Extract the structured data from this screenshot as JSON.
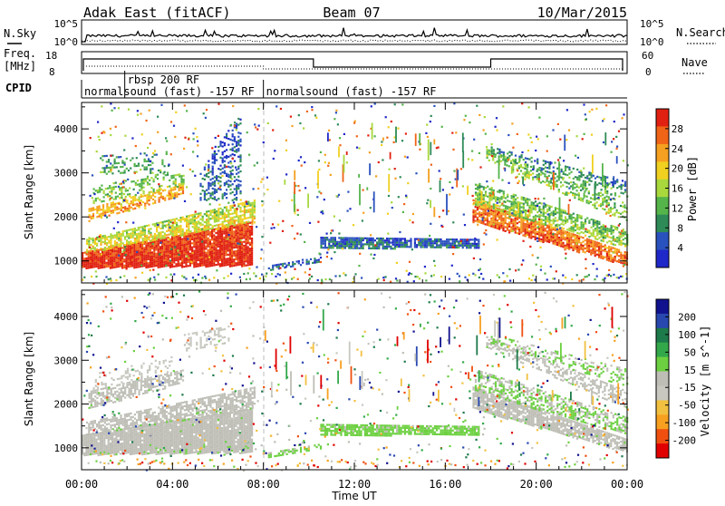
{
  "header": {
    "station": "Adak East (fitACF)",
    "beam": "Beam 07",
    "date": "10/Mar/2015"
  },
  "noise_panel": {
    "left_label": "N.Sky",
    "right_label": "N.Search",
    "left_ticks": [
      "10^5",
      "10^0"
    ],
    "right_ticks": [
      "10^5",
      "10^0"
    ]
  },
  "freq_panel": {
    "left_label_1": "Freq.",
    "left_label_2": "[MHz]",
    "left_ticks": [
      "18",
      "8"
    ],
    "right_label": "Nave",
    "right_ticks": [
      "60",
      "0"
    ]
  },
  "cpid": {
    "label": "CPID",
    "segments": [
      {
        "start_hour": 0.0,
        "end_hour": 8.0,
        "text": "normalsound (fast) -157 RF"
      },
      {
        "start_hour": 1.9,
        "end_hour": 5.5,
        "text": "rbsp 200 RF"
      },
      {
        "start_hour": 8.0,
        "end_hour": 24.0,
        "text": "normalsound (fast) -157 RF"
      }
    ]
  },
  "colors": {
    "power": [
      "#1f28c8",
      "#2a52be",
      "#2e8b57",
      "#55b44a",
      "#a8d83c",
      "#f0d020",
      "#f5a020",
      "#f06418",
      "#e02010"
    ],
    "velocity": [
      "#e00000",
      "#ef5010",
      "#f7a020",
      "#f2c040",
      "#c8c8c0",
      "#bebeb6",
      "#6cd040",
      "#33a84a",
      "#1d7a4a",
      "#2848b0",
      "#10128e"
    ]
  },
  "chart_data": [
    {
      "type": "heatmap",
      "name": "power",
      "ylabel": "Slant Range [km]",
      "colorbar_label": "Power [dB]",
      "colorbar_ticks": [
        "4",
        "8",
        "12",
        "16",
        "20",
        "24",
        "28"
      ],
      "x_ticks": [
        "00:00",
        "04:00",
        "08:00",
        "12:00",
        "16:00",
        "20:00",
        "00:00"
      ],
      "y_ticks": [
        "1000",
        "2000",
        "3000",
        "4000"
      ],
      "xlim": [
        0,
        24
      ],
      "ylim": [
        500,
        4600
      ],
      "clim": [
        0,
        32
      ],
      "bands": [
        {
          "t": [
            0.0,
            7.5
          ],
          "r": [
            850,
            1200
          ],
          "r_end": [
            900,
            1900
          ],
          "level": 30,
          "density": 0.95
        },
        {
          "t": [
            0.2,
            7.6
          ],
          "r": [
            1200,
            1500
          ],
          "r_end": [
            1900,
            2400
          ],
          "level": 18,
          "density": 0.7
        },
        {
          "t": [
            0.3,
            4.5
          ],
          "r": [
            1900,
            2200
          ],
          "r_end": [
            2500,
            2800
          ],
          "level": 22,
          "density": 0.6
        },
        {
          "t": [
            0.5,
            4.5
          ],
          "r": [
            2300,
            2700
          ],
          "r_end": [
            2700,
            3100
          ],
          "level": 14,
          "density": 0.35
        },
        {
          "t": [
            0.8,
            3.8
          ],
          "r": [
            3000,
            3400
          ],
          "r_end": [
            3000,
            3500
          ],
          "level": 10,
          "density": 0.25
        },
        {
          "t": [
            5.2,
            7.0
          ],
          "r": [
            2400,
            3000
          ],
          "r_end": [
            2400,
            4500
          ],
          "level": 6,
          "density": 0.35
        },
        {
          "t": [
            8.2,
            10.5
          ],
          "r": [
            800,
            900
          ],
          "r_end": [
            1000,
            1100
          ],
          "level": 6,
          "density": 0.5
        },
        {
          "t": [
            10.5,
            17.5
          ],
          "r": [
            1300,
            1550
          ],
          "r_end": [
            1300,
            1500
          ],
          "level": 6,
          "density": 0.85
        },
        {
          "t": [
            17.2,
            24.0
          ],
          "r": [
            1900,
            2400
          ],
          "r_end": [
            900,
            1200
          ],
          "level": 26,
          "density": 0.85
        },
        {
          "t": [
            17.3,
            24.0
          ],
          "r": [
            2300,
            2800
          ],
          "r_end": [
            1300,
            1700
          ],
          "level": 14,
          "density": 0.6
        },
        {
          "t": [
            17.8,
            24.0
          ],
          "r": [
            3300,
            3550
          ],
          "r_end": [
            1900,
            2300
          ],
          "level": 14,
          "density": 0.45
        },
        {
          "t": [
            18.0,
            24.0
          ],
          "r": [
            3400,
            3600
          ],
          "r_end": [
            2400,
            2800
          ],
          "level": 10,
          "density": 0.4
        }
      ]
    },
    {
      "type": "heatmap",
      "name": "velocity",
      "ylabel": "Slant Range [km]",
      "colorbar_label": "Velocity [m s^-1]",
      "colorbar_ticks": [
        "-200",
        "-100",
        "-50",
        "-15",
        "15",
        "50",
        "100",
        "200"
      ],
      "x_ticks": [
        "00:00",
        "04:00",
        "08:00",
        "12:00",
        "16:00",
        "20:00",
        "00:00"
      ],
      "xlabel": "Time UT",
      "y_ticks": [
        "1000",
        "2000",
        "3000",
        "4000"
      ],
      "xlim": [
        0,
        24
      ],
      "ylim": [
        500,
        4600
      ],
      "clim": [
        -250,
        250
      ],
      "bands": [
        {
          "t": [
            0.0,
            7.5
          ],
          "r": [
            850,
            1300
          ],
          "r_end": [
            900,
            1900
          ],
          "level": 0,
          "density": 0.95
        },
        {
          "t": [
            0.2,
            7.6
          ],
          "r": [
            1300,
            1600
          ],
          "r_end": [
            1900,
            2400
          ],
          "level": 0,
          "density": 0.7
        },
        {
          "t": [
            0.3,
            4.5
          ],
          "r": [
            1900,
            2300
          ],
          "r_end": [
            2500,
            2800
          ],
          "level": 0,
          "density": 0.65
        },
        {
          "t": [
            0.5,
            4.0
          ],
          "r": [
            2300,
            2700
          ],
          "r_end": [
            2700,
            3100
          ],
          "level": -40,
          "density": 0.25
        },
        {
          "t": [
            4.5,
            6.5
          ],
          "r": [
            3200,
            3600
          ],
          "r_end": [
            3400,
            3800
          ],
          "level": -40,
          "density": 0.3
        },
        {
          "t": [
            8.2,
            10.5
          ],
          "r": [
            800,
            900
          ],
          "r_end": [
            1000,
            1100
          ],
          "level": 40,
          "density": 0.5
        },
        {
          "t": [
            10.5,
            17.5
          ],
          "r": [
            1300,
            1550
          ],
          "r_end": [
            1300,
            1500
          ],
          "level": 40,
          "density": 0.85
        },
        {
          "t": [
            17.2,
            24.0
          ],
          "r": [
            1900,
            2400
          ],
          "r_end": [
            900,
            1200
          ],
          "level": 0,
          "density": 0.85
        },
        {
          "t": [
            17.3,
            24.0
          ],
          "r": [
            2300,
            2800
          ],
          "r_end": [
            1300,
            1700
          ],
          "level": 25,
          "density": 0.55
        },
        {
          "t": [
            17.8,
            24.0
          ],
          "r": [
            3300,
            3550
          ],
          "r_end": [
            1900,
            2300
          ],
          "level": 0,
          "density": 0.45
        },
        {
          "t": [
            18.0,
            24.0
          ],
          "r": [
            3400,
            3600
          ],
          "r_end": [
            2400,
            2800
          ],
          "level": 30,
          "density": 0.35
        }
      ]
    }
  ]
}
